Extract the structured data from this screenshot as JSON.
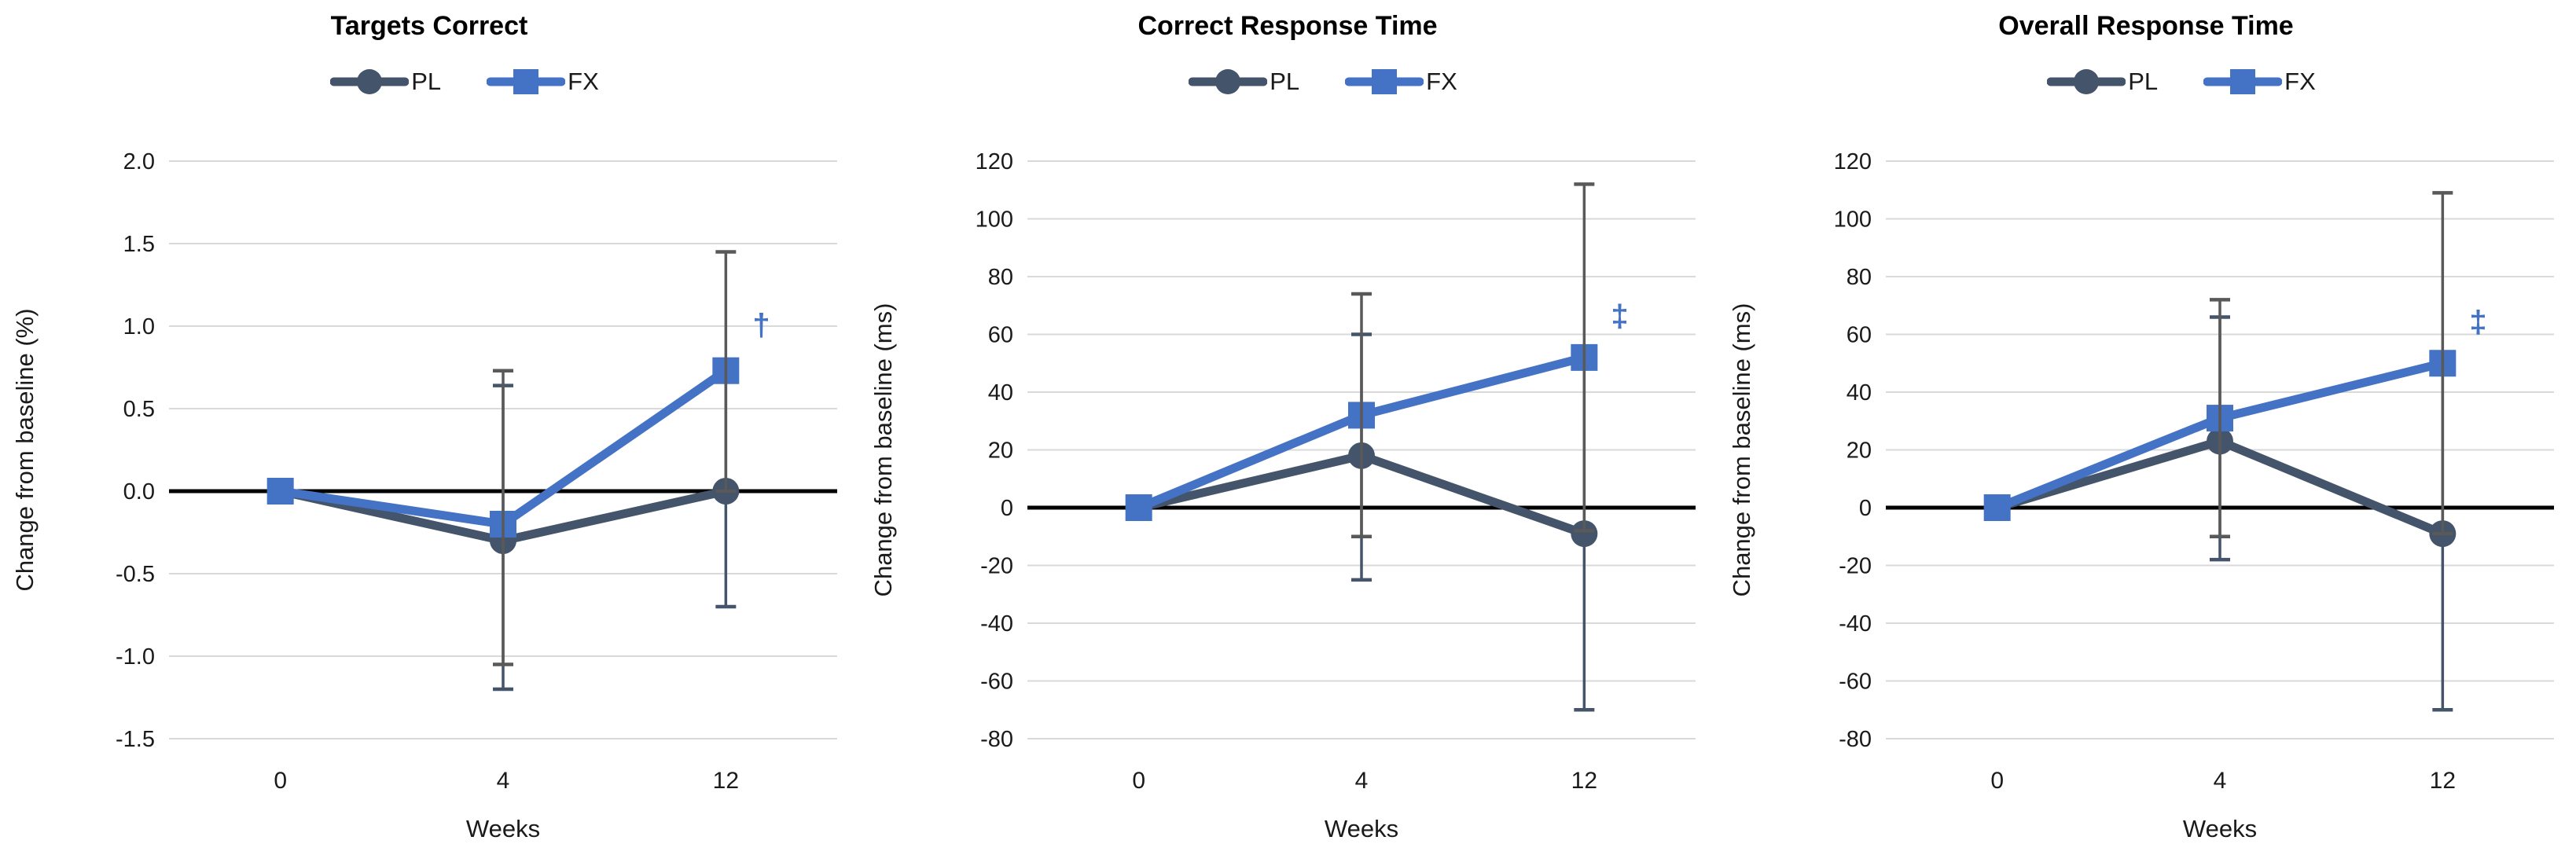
{
  "colors": {
    "pl_series": "#44546A",
    "fx_series": "#4472C4",
    "pl_error": "#44546A",
    "fx_error": "#595959",
    "gridline": "#D9D9D9",
    "zero_line": "#000000",
    "tick_text": "#1A1A1A",
    "title_text": "#000000"
  },
  "chart_data": [
    {
      "type": "line",
      "title": "Targets Correct",
      "ylabel": "Change from baseline (%)",
      "xlabel": "Weeks",
      "categories": [
        "0",
        "4",
        "12"
      ],
      "x_values_weeks": [
        0,
        4,
        12
      ],
      "ylim": [
        -1.5,
        2.0
      ],
      "yticks": [
        2.0,
        1.5,
        1.0,
        0.5,
        0.0,
        -0.5,
        -1.0,
        -1.5
      ],
      "ytick_labels": [
        "2.0",
        "1.5",
        "1.0",
        "0.5",
        "0.0",
        "-0.5",
        "-1.0",
        "-1.5"
      ],
      "grid": true,
      "legend_position": "top",
      "series": [
        {
          "name": "PL",
          "marker": "circle",
          "color": "#44546A",
          "error_color": "#44546A",
          "values": [
            0.0,
            -0.3,
            0.0
          ],
          "error_bars": [
            null,
            {
              "low": -1.2,
              "high": 0.64
            },
            {
              "low": -0.7,
              "high": 0.7
            }
          ]
        },
        {
          "name": "FX",
          "marker": "square",
          "color": "#4472C4",
          "error_color": "#595959",
          "values": [
            0.0,
            -0.2,
            0.73
          ],
          "error_bars": [
            null,
            {
              "low": -1.05,
              "high": 0.73
            },
            {
              "low": 0.0,
              "high": 1.45
            }
          ]
        }
      ],
      "annotation": {
        "text": "†",
        "x_index": 2,
        "y": 1.0,
        "color": "#4472C4"
      }
    },
    {
      "type": "line",
      "title": "Correct Response Time",
      "ylabel": "Change from baseline (ms)",
      "xlabel": "Weeks",
      "categories": [
        "0",
        "4",
        "12"
      ],
      "x_values_weeks": [
        0,
        4,
        12
      ],
      "ylim": [
        -80,
        120
      ],
      "yticks": [
        120,
        100,
        80,
        60,
        40,
        20,
        0,
        -20,
        -40,
        -60,
        -80
      ],
      "ytick_labels": [
        "120",
        "100",
        "80",
        "60",
        "40",
        "20",
        "0",
        "-20",
        "-40",
        "-60",
        "-80"
      ],
      "grid": true,
      "legend_position": "top",
      "series": [
        {
          "name": "PL",
          "marker": "circle",
          "color": "#44546A",
          "error_color": "#44546A",
          "values": [
            0,
            18,
            -9
          ],
          "error_bars": [
            null,
            {
              "low": -25,
              "high": 60
            },
            {
              "low": -70,
              "high": 52
            }
          ]
        },
        {
          "name": "FX",
          "marker": "square",
          "color": "#4472C4",
          "error_color": "#595959",
          "values": [
            0,
            32,
            52
          ],
          "error_bars": [
            null,
            {
              "low": -10,
              "high": 74
            },
            {
              "low": -8,
              "high": 112
            }
          ]
        }
      ],
      "annotation": {
        "text": "‡",
        "x_index": 2,
        "y": 66,
        "color": "#4472C4"
      }
    },
    {
      "type": "line",
      "title": "Overall Response Time",
      "ylabel": "Change from baseline (ms)",
      "xlabel": "Weeks",
      "categories": [
        "0",
        "4",
        "12"
      ],
      "x_values_weeks": [
        0,
        4,
        12
      ],
      "ylim": [
        -80,
        120
      ],
      "yticks": [
        120,
        100,
        80,
        60,
        40,
        20,
        0,
        -20,
        -40,
        -60,
        -80
      ],
      "ytick_labels": [
        "120",
        "100",
        "80",
        "60",
        "40",
        "20",
        "0",
        "-20",
        "-40",
        "-60",
        "-80"
      ],
      "grid": true,
      "legend_position": "top",
      "series": [
        {
          "name": "PL",
          "marker": "circle",
          "color": "#44546A",
          "error_color": "#44546A",
          "values": [
            0,
            23,
            -9
          ],
          "error_bars": [
            null,
            {
              "low": -18,
              "high": 66
            },
            {
              "low": -70,
              "high": 52
            }
          ]
        },
        {
          "name": "FX",
          "marker": "square",
          "color": "#4472C4",
          "error_color": "#595959",
          "values": [
            0,
            31,
            50
          ],
          "error_bars": [
            null,
            {
              "low": -10,
              "high": 72
            },
            {
              "low": -9,
              "high": 109
            }
          ]
        }
      ],
      "annotation": {
        "text": "‡",
        "x_index": 2,
        "y": 64,
        "color": "#4472C4"
      }
    }
  ]
}
